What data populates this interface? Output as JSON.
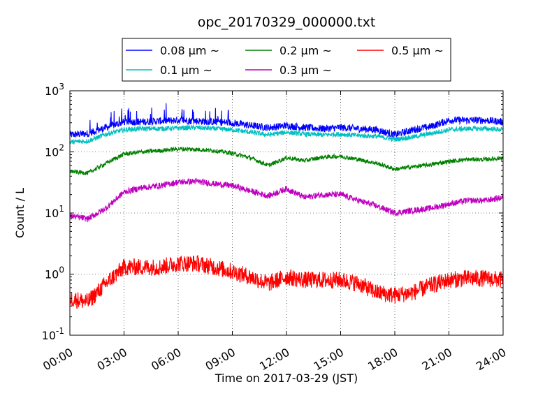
{
  "chart_data": {
    "type": "line",
    "title": "opc_20170329_000000.txt",
    "xlabel": "Time on 2017-03-29 (JST)",
    "ylabel": "Count / L",
    "x_range_hours": [
      0,
      24
    ],
    "y_scale": "log",
    "ylim": [
      0.1,
      1000
    ],
    "grid": true,
    "legend_location": "upper center (above plot)",
    "x_ticks": [
      "00:00",
      "03:00",
      "06:00",
      "09:00",
      "12:00",
      "15:00",
      "18:00",
      "21:00",
      "24:00"
    ],
    "y_ticks": [
      {
        "base": "10",
        "exp": "-1",
        "value": 0.1
      },
      {
        "base": "10",
        "exp": "0",
        "value": 1
      },
      {
        "base": "10",
        "exp": "1",
        "value": 10
      },
      {
        "base": "10",
        "exp": "2",
        "value": 100
      },
      {
        "base": "10",
        "exp": "3",
        "value": 1000
      }
    ],
    "x_hours": [
      0,
      1,
      2,
      3,
      4,
      5,
      6,
      7,
      8,
      9,
      10,
      11,
      12,
      13,
      14,
      15,
      16,
      17,
      18,
      19,
      20,
      21,
      22,
      23,
      24
    ],
    "series": [
      {
        "name": "0.08 μm ~",
        "color": "#0000ff",
        "values": [
          190,
          200,
          250,
          310,
          310,
          320,
          330,
          320,
          310,
          300,
          270,
          250,
          270,
          250,
          240,
          250,
          240,
          230,
          190,
          230,
          260,
          330,
          330,
          330,
          310
        ]
      },
      {
        "name": "0.1 μm ~",
        "color": "#00bfbf",
        "values": [
          145,
          150,
          195,
          230,
          240,
          240,
          245,
          250,
          240,
          230,
          210,
          190,
          210,
          195,
          190,
          195,
          185,
          180,
          160,
          175,
          200,
          230,
          240,
          240,
          230
        ]
      },
      {
        "name": "0.2 μm ~",
        "color": "#008000",
        "values": [
          48,
          45,
          65,
          92,
          100,
          105,
          112,
          110,
          105,
          95,
          80,
          60,
          80,
          72,
          82,
          85,
          75,
          65,
          52,
          57,
          62,
          70,
          75,
          75,
          80
        ]
      },
      {
        "name": "0.3 μm ~",
        "color": "#bf00bf",
        "values": [
          9,
          8,
          12,
          22,
          26,
          28,
          32,
          33,
          30,
          28,
          23,
          19,
          25,
          18,
          20,
          20,
          16,
          13,
          10,
          11,
          12,
          14,
          16,
          16,
          18
        ]
      },
      {
        "name": "0.5 μm ~",
        "color": "#ff0000",
        "values": [
          0.4,
          0.35,
          0.7,
          1.3,
          1.3,
          1.3,
          1.5,
          1.5,
          1.3,
          1.1,
          0.9,
          0.7,
          0.9,
          0.8,
          0.8,
          0.8,
          0.7,
          0.5,
          0.45,
          0.5,
          0.65,
          0.8,
          0.85,
          0.85,
          0.8
        ]
      }
    ]
  }
}
